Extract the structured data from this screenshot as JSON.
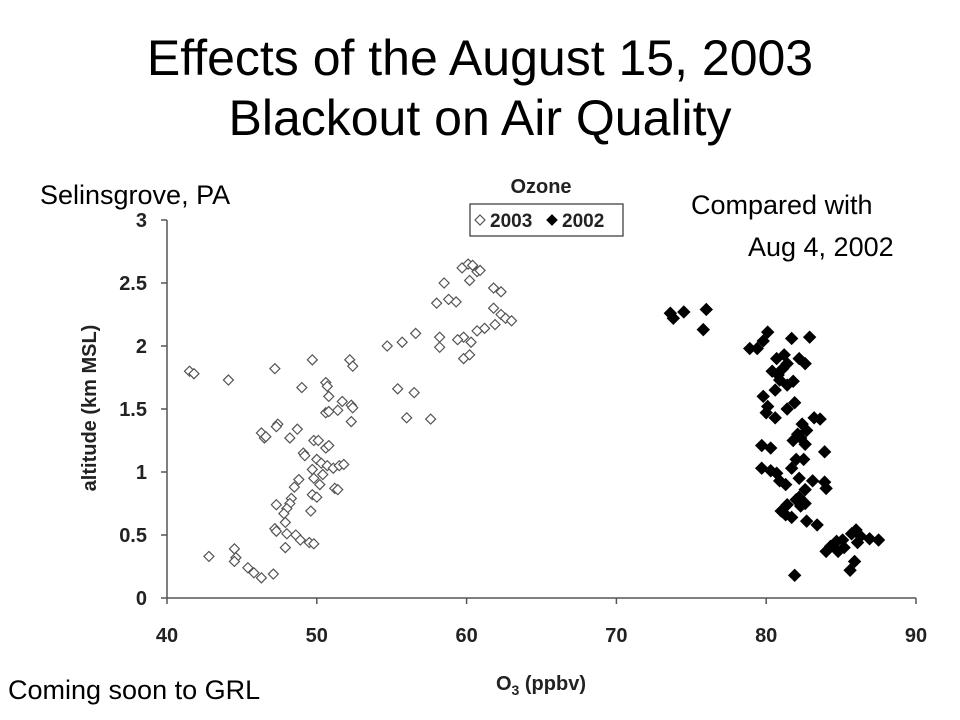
{
  "slide": {
    "title_line1": "Effects of the August 15, 2003",
    "title_line2": "Blackout on Air Quality",
    "location_note": "Selinsgrove, PA",
    "compare_line1": "Compared with",
    "compare_line2": "Aug 4, 2002",
    "footer_note": "Coming soon to GRL"
  },
  "chart_data": {
    "type": "scatter",
    "title": "Ozone",
    "xlabel": "O3 (ppbv)",
    "ylabel": "altitude (km MSL)",
    "xlim": [
      40,
      90
    ],
    "ylim": [
      0,
      3
    ],
    "xticks": [
      "40",
      "50",
      "60",
      "70",
      "80",
      "90"
    ],
    "yticks": [
      "0",
      "0.5",
      "1",
      "1.5",
      "2",
      "2.5",
      "3"
    ],
    "grid": false,
    "legend_position": "top-center",
    "series": [
      {
        "name": "2003",
        "marker": "open-diamond",
        "color": "#555555",
        "points": [
          [
            41.5,
            1.8
          ],
          [
            41.8,
            1.78
          ],
          [
            44.1,
            1.73
          ],
          [
            47.2,
            1.82
          ],
          [
            49.7,
            1.89
          ],
          [
            52.2,
            1.89
          ],
          [
            52.4,
            1.84
          ],
          [
            49.0,
            1.67
          ],
          [
            50.6,
            1.71
          ],
          [
            50.7,
            1.68
          ],
          [
            50.8,
            1.6
          ],
          [
            51.7,
            1.56
          ],
          [
            51.4,
            1.49
          ],
          [
            52.3,
            1.53
          ],
          [
            52.4,
            1.51
          ],
          [
            50.6,
            1.47
          ],
          [
            50.8,
            1.48
          ],
          [
            52.3,
            1.4
          ],
          [
            47.4,
            1.38
          ],
          [
            47.3,
            1.36
          ],
          [
            46.3,
            1.31
          ],
          [
            46.5,
            1.27
          ],
          [
            46.6,
            1.28
          ],
          [
            48.2,
            1.27
          ],
          [
            48.7,
            1.34
          ],
          [
            49.8,
            1.25
          ],
          [
            50.1,
            1.25
          ],
          [
            50.6,
            1.19
          ],
          [
            50.8,
            1.21
          ],
          [
            49.1,
            1.15
          ],
          [
            49.2,
            1.13
          ],
          [
            50.0,
            1.1
          ],
          [
            50.3,
            1.07
          ],
          [
            50.7,
            1.05
          ],
          [
            49.7,
            1.02
          ],
          [
            51.1,
            1.03
          ],
          [
            51.5,
            1.05
          ],
          [
            51.8,
            1.06
          ],
          [
            50.4,
            0.98
          ],
          [
            49.8,
            0.95
          ],
          [
            50.2,
            0.9
          ],
          [
            49.7,
            0.82
          ],
          [
            50.0,
            0.8
          ],
          [
            51.2,
            0.87
          ],
          [
            51.4,
            0.86
          ],
          [
            48.8,
            0.94
          ],
          [
            48.5,
            0.88
          ],
          [
            48.3,
            0.79
          ],
          [
            48.2,
            0.75
          ],
          [
            48.0,
            0.71
          ],
          [
            47.8,
            0.67
          ],
          [
            49.6,
            0.69
          ],
          [
            47.3,
            0.74
          ],
          [
            47.9,
            0.6
          ],
          [
            47.2,
            0.55
          ],
          [
            47.3,
            0.53
          ],
          [
            48.0,
            0.51
          ],
          [
            48.6,
            0.5
          ],
          [
            48.9,
            0.46
          ],
          [
            49.5,
            0.44
          ],
          [
            49.8,
            0.43
          ],
          [
            47.9,
            0.4
          ],
          [
            42.8,
            0.33
          ],
          [
            44.5,
            0.39
          ],
          [
            44.6,
            0.32
          ],
          [
            44.5,
            0.29
          ],
          [
            45.4,
            0.24
          ],
          [
            45.8,
            0.2
          ],
          [
            46.3,
            0.16
          ],
          [
            47.1,
            0.19
          ],
          [
            54.7,
            2.0
          ],
          [
            55.7,
            2.03
          ],
          [
            56.6,
            2.1
          ],
          [
            58.0,
            2.34
          ],
          [
            58.5,
            2.5
          ],
          [
            58.8,
            2.37
          ],
          [
            59.3,
            2.35
          ],
          [
            59.7,
            2.62
          ],
          [
            60.1,
            2.65
          ],
          [
            60.4,
            2.64
          ],
          [
            60.7,
            2.59
          ],
          [
            60.9,
            2.6
          ],
          [
            60.2,
            2.52
          ],
          [
            61.8,
            2.46
          ],
          [
            62.3,
            2.43
          ],
          [
            61.8,
            2.3
          ],
          [
            62.3,
            2.25
          ],
          [
            62.6,
            2.22
          ],
          [
            63.0,
            2.2
          ],
          [
            61.9,
            2.17
          ],
          [
            61.2,
            2.14
          ],
          [
            60.7,
            2.12
          ],
          [
            60.3,
            2.03
          ],
          [
            59.8,
            2.07
          ],
          [
            59.4,
            2.05
          ],
          [
            58.2,
            2.07
          ],
          [
            58.2,
            1.99
          ],
          [
            59.8,
            1.9
          ],
          [
            60.2,
            1.93
          ],
          [
            55.4,
            1.66
          ],
          [
            56.5,
            1.63
          ],
          [
            56.0,
            1.43
          ],
          [
            57.6,
            1.42
          ]
        ]
      },
      {
        "name": "2002",
        "marker": "filled-diamond",
        "color": "#000000",
        "points": [
          [
            73.6,
            2.26
          ],
          [
            73.8,
            2.22
          ],
          [
            74.5,
            2.27
          ],
          [
            76.0,
            2.29
          ],
          [
            75.8,
            2.13
          ],
          [
            78.9,
            1.98
          ],
          [
            79.4,
            1.98
          ],
          [
            79.8,
            2.04
          ],
          [
            80.1,
            2.11
          ],
          [
            81.2,
            1.93
          ],
          [
            81.7,
            2.06
          ],
          [
            82.9,
            2.07
          ],
          [
            80.7,
            1.9
          ],
          [
            81.4,
            1.86
          ],
          [
            82.2,
            1.9
          ],
          [
            82.6,
            1.86
          ],
          [
            80.4,
            1.8
          ],
          [
            80.8,
            1.77
          ],
          [
            81.1,
            1.82
          ],
          [
            80.9,
            1.73
          ],
          [
            81.4,
            1.69
          ],
          [
            81.8,
            1.72
          ],
          [
            80.6,
            1.65
          ],
          [
            79.8,
            1.6
          ],
          [
            80.1,
            1.52
          ],
          [
            80.0,
            1.47
          ],
          [
            80.6,
            1.43
          ],
          [
            81.4,
            1.5
          ],
          [
            81.9,
            1.55
          ],
          [
            83.2,
            1.43
          ],
          [
            83.6,
            1.42
          ],
          [
            82.4,
            1.38
          ],
          [
            82.7,
            1.33
          ],
          [
            82.1,
            1.3
          ],
          [
            82.3,
            1.27
          ],
          [
            82.6,
            1.22
          ],
          [
            81.8,
            1.25
          ],
          [
            79.7,
            1.21
          ],
          [
            80.3,
            1.19
          ],
          [
            82.0,
            1.1
          ],
          [
            82.5,
            1.1
          ],
          [
            81.7,
            1.03
          ],
          [
            83.9,
            1.16
          ],
          [
            79.7,
            1.03
          ],
          [
            80.3,
            1.01
          ],
          [
            80.7,
            0.99
          ],
          [
            80.9,
            0.93
          ],
          [
            81.3,
            0.9
          ],
          [
            82.2,
            0.95
          ],
          [
            83.1,
            0.93
          ],
          [
            83.9,
            0.92
          ],
          [
            84.0,
            0.87
          ],
          [
            82.6,
            0.86
          ],
          [
            82.2,
            0.8
          ],
          [
            82.0,
            0.78
          ],
          [
            82.6,
            0.75
          ],
          [
            82.3,
            0.73
          ],
          [
            81.4,
            0.74
          ],
          [
            81.0,
            0.69
          ],
          [
            81.3,
            0.66
          ],
          [
            81.7,
            0.64
          ],
          [
            82.7,
            0.61
          ],
          [
            83.4,
            0.58
          ],
          [
            85.1,
            0.46
          ],
          [
            84.7,
            0.45
          ],
          [
            84.3,
            0.41
          ],
          [
            84.0,
            0.37
          ],
          [
            84.8,
            0.37
          ],
          [
            85.2,
            0.4
          ],
          [
            85.7,
            0.51
          ],
          [
            86.0,
            0.54
          ],
          [
            86.3,
            0.49
          ],
          [
            86.9,
            0.47
          ],
          [
            87.5,
            0.46
          ],
          [
            86.1,
            0.44
          ],
          [
            85.9,
            0.29
          ],
          [
            85.6,
            0.22
          ],
          [
            81.9,
            0.18
          ]
        ]
      }
    ]
  }
}
